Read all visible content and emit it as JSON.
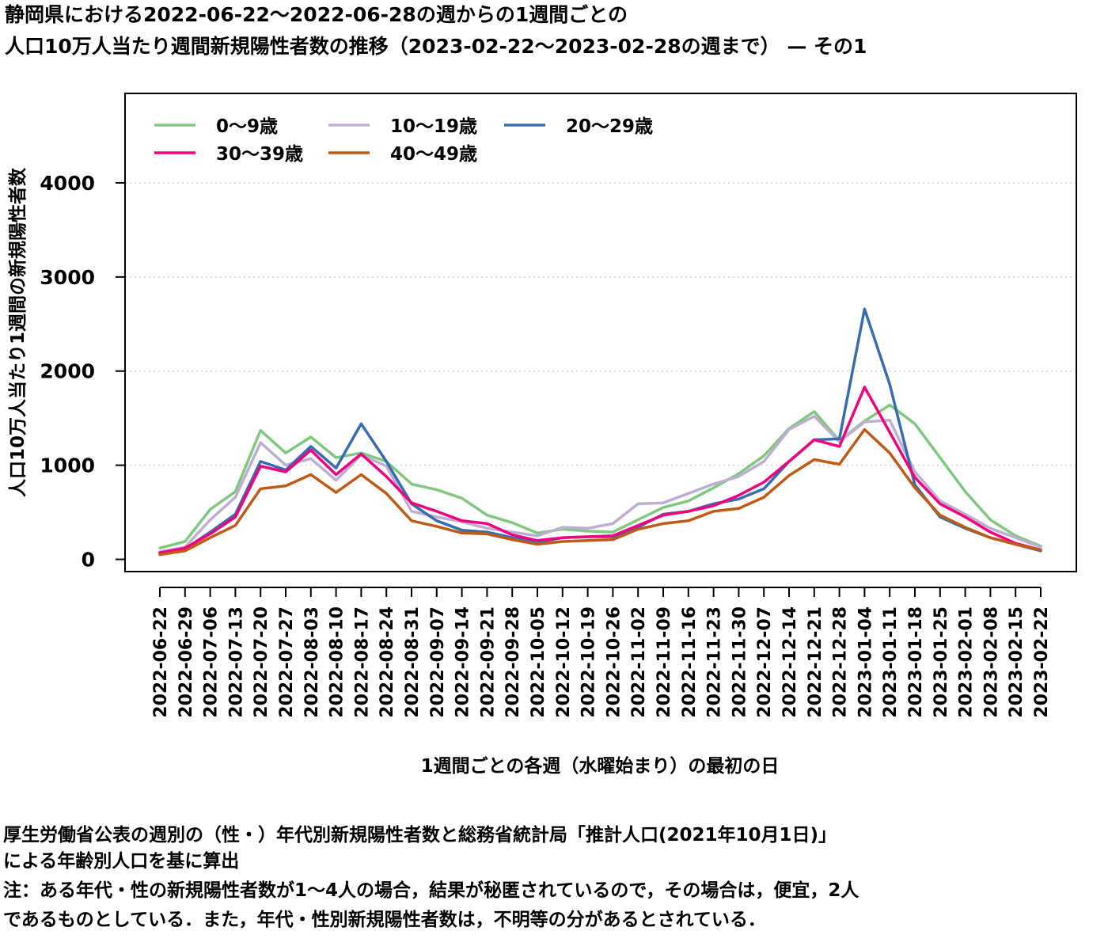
{
  "title_line1": "静岡県における2022-06-22〜2022-06-28の週からの1週間ごとの",
  "title_line2": "人口10万人当たり週間新規陽性者数の推移（2023-02-22〜2023-02-28の週まで） — その1",
  "notes": {
    "line1": "厚生労働省公表の週別の（性・）年代別新規陽性者数と総務省統計局「推計人口(2021年10月1日)」",
    "line2": "による年齢別人口を基に算出",
    "line3": "注：ある年代・性の新規陽性者数が1〜4人の場合，結果が秘匿されているので，その場合は，便宜，2人",
    "line4": "であるものとしている．また，年代・性別新規陽性者数は，不明等の分があるとされている．"
  },
  "chart_data": {
    "type": "line",
    "xlabel": "1週間ごとの各週（水曜始まり）の最初の日",
    "ylabel": "人口10万人当たり1週間の新規陽性者数",
    "ylim": [
      -130,
      4950
    ],
    "yticks": [
      0,
      1000,
      2000,
      3000,
      4000
    ],
    "grid": "horizontal dotted",
    "legend_position": "top-left",
    "categories": [
      "2022-06-22",
      "2022-06-29",
      "2022-07-06",
      "2022-07-13",
      "2022-07-20",
      "2022-07-27",
      "2022-08-03",
      "2022-08-10",
      "2022-08-17",
      "2022-08-24",
      "2022-08-31",
      "2022-09-07",
      "2022-09-14",
      "2022-09-21",
      "2022-09-28",
      "2022-10-05",
      "2022-10-12",
      "2022-10-19",
      "2022-10-26",
      "2022-11-02",
      "2022-11-09",
      "2022-11-16",
      "2022-11-23",
      "2022-11-30",
      "2022-12-07",
      "2022-12-14",
      "2022-12-21",
      "2022-12-28",
      "2023-01-04",
      "2023-01-11",
      "2023-01-18",
      "2023-01-25",
      "2023-02-01",
      "2023-02-08",
      "2023-02-15",
      "2023-02-22"
    ],
    "series": [
      {
        "name": "0〜9歳",
        "color": "#7fc97f",
        "values": [
          120,
          190,
          530,
          720,
          1370,
          1130,
          1300,
          1080,
          1130,
          1040,
          800,
          740,
          650,
          470,
          390,
          280,
          320,
          300,
          290,
          420,
          550,
          620,
          760,
          910,
          1100,
          1390,
          1570,
          1260,
          1470,
          1640,
          1440,
          1080,
          720,
          420,
          250,
          140
        ]
      },
      {
        "name": "10〜19歳",
        "color": "#beaed4",
        "values": [
          80,
          130,
          420,
          660,
          1240,
          1000,
          1070,
          840,
          1110,
          990,
          510,
          450,
          400,
          330,
          290,
          250,
          340,
          330,
          380,
          590,
          600,
          700,
          800,
          880,
          1040,
          1380,
          1520,
          1250,
          1460,
          1480,
          930,
          620,
          480,
          330,
          230,
          130
        ]
      },
      {
        "name": "20〜29歳",
        "color": "#386cb0",
        "values": [
          60,
          110,
          290,
          480,
          1040,
          950,
          1200,
          970,
          1440,
          1040,
          590,
          410,
          310,
          290,
          230,
          180,
          230,
          240,
          240,
          340,
          480,
          510,
          590,
          640,
          750,
          1040,
          1270,
          1280,
          2660,
          1860,
          790,
          450,
          330,
          230,
          160,
          90
        ]
      },
      {
        "name": "30〜39歳",
        "color": "#f0027f",
        "values": [
          70,
          120,
          270,
          450,
          990,
          930,
          1160,
          900,
          1120,
          880,
          600,
          510,
          410,
          380,
          260,
          200,
          230,
          240,
          250,
          360,
          470,
          510,
          570,
          680,
          820,
          1040,
          1270,
          1200,
          1830,
          1350,
          870,
          590,
          450,
          290,
          170,
          100
        ]
      },
      {
        "name": "40〜49歳",
        "color": "#bf5b17",
        "values": [
          50,
          90,
          230,
          360,
          750,
          780,
          900,
          710,
          900,
          700,
          410,
          350,
          280,
          270,
          210,
          160,
          190,
          200,
          210,
          320,
          380,
          410,
          510,
          540,
          660,
          890,
          1060,
          1010,
          1380,
          1130,
          760,
          470,
          340,
          230,
          160,
          100
        ]
      }
    ]
  }
}
